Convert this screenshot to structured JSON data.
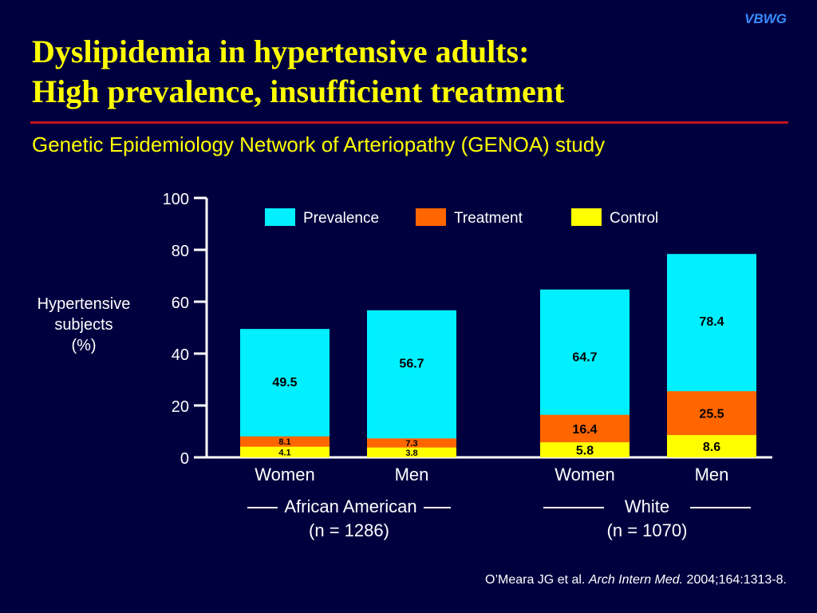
{
  "header": {
    "brand": "VBWG",
    "title_line1": "Dyslipidemia in hypertensive adults:",
    "title_line2": "High prevalence, insufficient treatment",
    "subtitle": "Genetic Epidemiology Network of Arteriopathy (GENOA) study"
  },
  "colors": {
    "background": "#00003f",
    "title": "#ffff00",
    "rule": "#c0141e",
    "brand": "#3a8cff"
  },
  "chart_data": {
    "type": "bar",
    "stacked_overlay": true,
    "ylabel_lines": [
      "Hypertensive",
      "subjects",
      "(%)"
    ],
    "ylim": [
      0,
      100
    ],
    "yticks": [
      0,
      20,
      40,
      60,
      80,
      100
    ],
    "grid": false,
    "legend_placement": "top",
    "categories": [
      "Women",
      "Men",
      "Women",
      "Men"
    ],
    "series": [
      {
        "name": "Prevalence",
        "color": "#00f0ff",
        "values": [
          49.5,
          56.7,
          64.7,
          78.4
        ]
      },
      {
        "name": "Treatment",
        "color": "#ff6600",
        "values": [
          8.1,
          7.3,
          16.4,
          25.5
        ]
      },
      {
        "name": "Control",
        "color": "#ffff00",
        "values": [
          4.1,
          3.8,
          5.8,
          8.6
        ]
      }
    ],
    "groups": [
      {
        "name": "African American",
        "n": "(n = 1286)",
        "bars": [
          0,
          1
        ]
      },
      {
        "name": "White",
        "n": "(n = 1070)",
        "bars": [
          2,
          3
        ]
      }
    ]
  },
  "citation": {
    "authors": "O’Meara JG et al. ",
    "journal": "Arch Intern Med.",
    "details": " 2004;164:1313-8."
  }
}
